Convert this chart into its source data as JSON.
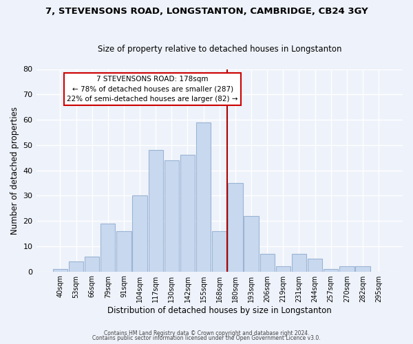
{
  "title": "7, STEVENSONS ROAD, LONGSTANTON, CAMBRIDGE, CB24 3GY",
  "subtitle": "Size of property relative to detached houses in Longstanton",
  "xlabel": "Distribution of detached houses by size in Longstanton",
  "ylabel": "Number of detached properties",
  "bar_labels": [
    "40sqm",
    "53sqm",
    "66sqm",
    "79sqm",
    "91sqm",
    "104sqm",
    "117sqm",
    "130sqm",
    "142sqm",
    "155sqm",
    "168sqm",
    "180sqm",
    "193sqm",
    "206sqm",
    "219sqm",
    "231sqm",
    "244sqm",
    "257sqm",
    "270sqm",
    "282sqm",
    "295sqm"
  ],
  "bar_values": [
    1,
    4,
    6,
    19,
    16,
    30,
    48,
    44,
    46,
    59,
    16,
    35,
    22,
    7,
    2,
    7,
    5,
    1,
    2,
    2,
    0
  ],
  "bar_color": "#c8d8ef",
  "bar_edge_color": "#9ab4d4",
  "vline_color": "#aa0000",
  "ylim": [
    0,
    80
  ],
  "yticks": [
    0,
    10,
    20,
    30,
    40,
    50,
    60,
    70,
    80
  ],
  "annotation_title": "7 STEVENSONS ROAD: 178sqm",
  "annotation_line1": "← 78% of detached houses are smaller (287)",
  "annotation_line2": "22% of semi-detached houses are larger (82) →",
  "annotation_box_color": "#ffffff",
  "annotation_box_edge": "#cc0000",
  "bg_color": "#eef2fa",
  "grid_color": "#ffffff",
  "footer_line1": "Contains HM Land Registry data © Crown copyright and database right 2024.",
  "footer_line2": "Contains public sector information licensed under the Open Government Licence v3.0."
}
